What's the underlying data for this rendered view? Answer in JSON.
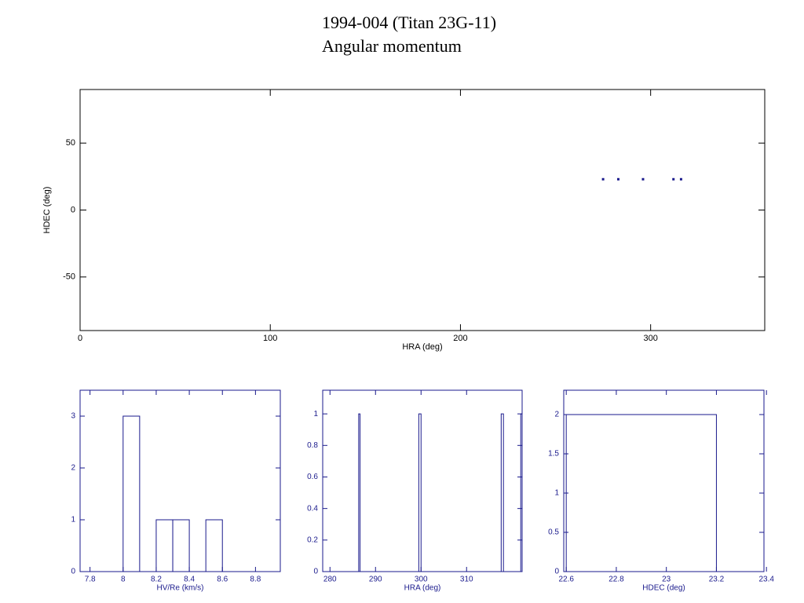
{
  "chart_data": [
    {
      "type": "scatter",
      "title": "1994-004 (Titan 23G-11)",
      "subtitle": "Angular momentum",
      "x_label": "HRA (deg)",
      "y_label": "HDEC (deg)",
      "x": [
        275,
        283,
        296,
        312,
        316
      ],
      "values": [
        23,
        23,
        23,
        23,
        23
      ],
      "xlim": [
        0,
        360
      ],
      "ylim": [
        -90,
        90
      ],
      "xticks": [
        0,
        100,
        200,
        300
      ],
      "yticks": [
        -50,
        0,
        50
      ],
      "color": "#1a1a8c",
      "axis_color": "#000000"
    },
    {
      "type": "histogram",
      "x_label": "HV/Re (km/s)",
      "bins": [
        8,
        8.1,
        8.2,
        8.3,
        8.4,
        8.5,
        8.6
      ],
      "values": [
        3,
        0,
        1,
        1,
        0,
        1
      ],
      "xlim": [
        7.74,
        8.95
      ],
      "ylim": [
        0,
        3.5
      ],
      "xticks": [
        7.8,
        8,
        8.2,
        8.4,
        8.6,
        8.8
      ],
      "yticks": [
        0,
        1,
        2,
        3
      ],
      "color": "#1a1a8c",
      "axis_color": "#1a1a8c"
    },
    {
      "type": "histogram",
      "x_label": "HRA (deg)",
      "bins": [
        286.3,
        286.6,
        299.5,
        300.0,
        317.6,
        318.1,
        321.9,
        322.2
      ],
      "values": [
        1,
        0,
        1,
        0,
        1,
        0,
        1
      ],
      "xlim": [
        278.4,
        322.2
      ],
      "ylim": [
        0,
        1.15
      ],
      "xticks": [
        280,
        290,
        300,
        310
      ],
      "yticks": [
        0,
        0.2,
        0.4,
        0.6,
        0.8,
        1
      ],
      "color": "#1a1a8c",
      "axis_color": "#1a1a8c"
    },
    {
      "type": "histogram",
      "x_label": "HDEC (deg)",
      "bins": [
        22.6,
        23.2
      ],
      "values": [
        2
      ],
      "xlim": [
        22.59,
        23.39
      ],
      "ylim": [
        0,
        2.31
      ],
      "xticks": [
        22.6,
        22.8,
        23,
        23.2,
        23.4
      ],
      "yticks": [
        0,
        0.5,
        1,
        1.5,
        2
      ],
      "color": "#1a1a8c",
      "axis_color": "#1a1a8c"
    }
  ]
}
